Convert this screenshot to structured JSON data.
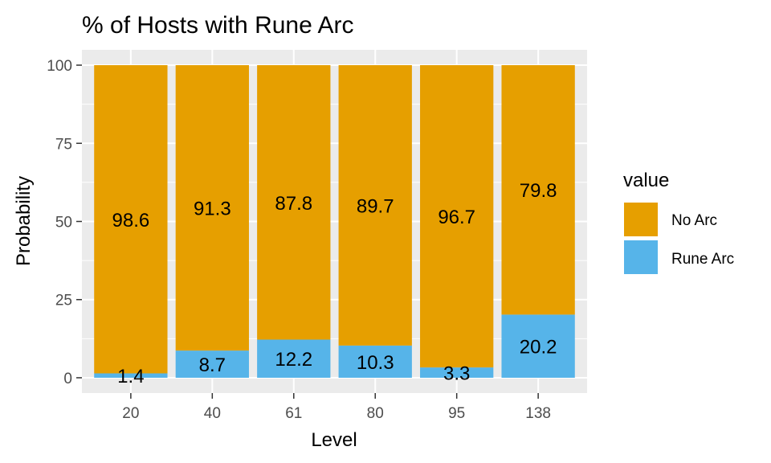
{
  "chart_data": {
    "type": "bar",
    "stacked": true,
    "title": "% of Hosts with Rune Arc",
    "xlabel": "Level",
    "ylabel": "Probability",
    "categories": [
      "20",
      "40",
      "61",
      "80",
      "95",
      "138"
    ],
    "ylim": [
      0,
      100
    ],
    "yticks": [
      0,
      25,
      50,
      75,
      100
    ],
    "series": [
      {
        "name": "Rune Arc",
        "color": "#56B4E9",
        "values": [
          1.4,
          8.7,
          12.2,
          10.3,
          3.3,
          20.2
        ]
      },
      {
        "name": "No Arc",
        "color": "#E69F00",
        "values": [
          98.6,
          91.3,
          87.8,
          89.7,
          96.7,
          79.8
        ]
      }
    ],
    "legend": {
      "title": "value",
      "position": "right",
      "order": [
        "No Arc",
        "Rune Arc"
      ]
    },
    "grid": true,
    "panel_background": "#EBEBEB"
  }
}
